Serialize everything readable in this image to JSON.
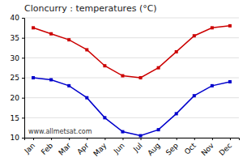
{
  "chart_data": {
    "type": "line",
    "title": "Cloncurry : temperatures (°C)",
    "categories": [
      "Jan",
      "Feb",
      "Mar",
      "Apr",
      "May",
      "Jun",
      "Jul",
      "Aug",
      "Sep",
      "Oct",
      "Nov",
      "Dec"
    ],
    "series": [
      {
        "color": "#cc0000",
        "marker": "square",
        "values": [
          37.5,
          36.0,
          34.5,
          32.0,
          28.0,
          25.5,
          25.0,
          27.5,
          31.5,
          35.5,
          37.5,
          38.0
        ]
      },
      {
        "color": "#0000cc",
        "marker": "square",
        "values": [
          25.0,
          24.5,
          23.0,
          20.0,
          15.0,
          11.5,
          10.5,
          12.0,
          16.0,
          20.5,
          23.0,
          24.0
        ]
      }
    ],
    "ylim": [
      10,
      40
    ],
    "yticks": [
      10,
      15,
      20,
      25,
      30,
      35,
      40
    ],
    "grid": true,
    "annotations": [
      "www.allmetsat.com"
    ]
  }
}
